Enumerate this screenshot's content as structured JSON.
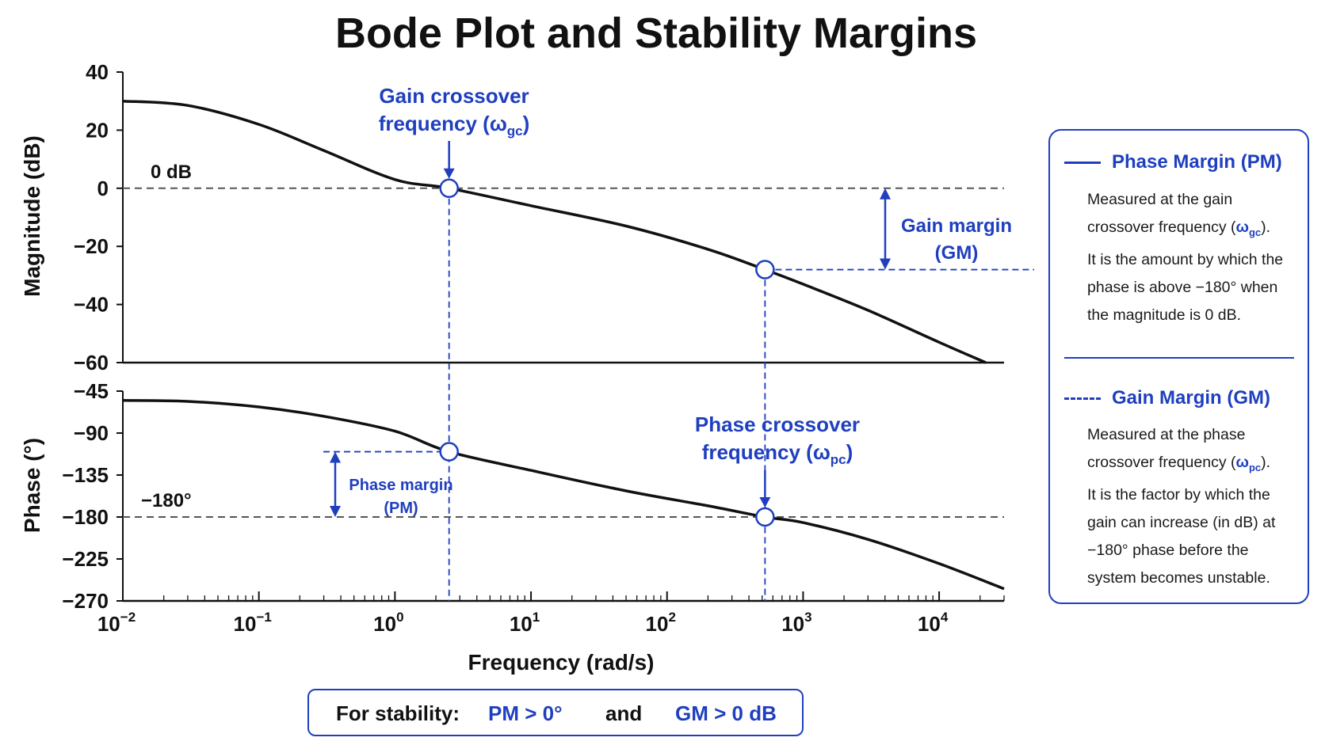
{
  "chart_data": [
    {
      "type": "line",
      "panel": "magnitude",
      "title": "Bode Plot and Stability Margins",
      "ylabel": "Magnitude (dB)",
      "xscale": "log",
      "xlim": [
        0.01,
        30000
      ],
      "ylim": [
        -60,
        40
      ],
      "yticks": [
        40,
        20,
        0,
        -20,
        -40,
        -60
      ],
      "ytick_labels": [
        "40",
        "20",
        "0",
        "−20",
        "−40",
        "−60"
      ],
      "series": [
        {
          "x": [
            0.01,
            0.03,
            0.1,
            0.3,
            1,
            2.5,
            10,
            50,
            200,
            525,
            1000,
            3000,
            10000,
            22000
          ],
          "values": [
            30,
            28.5,
            22,
            13,
            3,
            0,
            -6,
            -13,
            -21,
            -28,
            -33,
            -42,
            -53,
            -60
          ]
        }
      ],
      "reference_line": {
        "y": 0,
        "label": "0 dB"
      },
      "markers": [
        {
          "x": 2.5,
          "y": 0
        },
        {
          "x": 525,
          "y": -28
        }
      ],
      "annotations": {
        "gain_crossover_line1": "Gain crossover",
        "gain_crossover_line2": "frequency (ω",
        "gain_crossover_sub": "gc",
        "gain_crossover_close": ")",
        "gain_margin_line1": "Gain margin",
        "gain_margin_line2": "(GM)"
      }
    },
    {
      "type": "line",
      "panel": "phase",
      "ylabel": "Phase (°)",
      "xlabel": "Frequency (rad/s)",
      "xscale": "log",
      "xlim": [
        0.01,
        30000
      ],
      "ylim": [
        -270,
        -45
      ],
      "yticks": [
        -45,
        -90,
        -135,
        -180,
        -225,
        -270
      ],
      "ytick_labels": [
        "−45",
        "−90",
        "−135",
        "−180",
        "−225",
        "−270"
      ],
      "xticks": [
        0.01,
        0.1,
        1,
        10,
        100,
        1000,
        10000
      ],
      "xtick_base": [
        "10",
        "10",
        "10",
        "10",
        "10",
        "10",
        "10"
      ],
      "xtick_exp": [
        "−2",
        "−1",
        "0",
        "1",
        "2",
        "3",
        "4"
      ],
      "series": [
        {
          "x": [
            0.01,
            0.03,
            0.1,
            0.3,
            1,
            2.5,
            10,
            50,
            200,
            525,
            1000,
            3000,
            10000,
            30000
          ],
          "values": [
            -55,
            -56,
            -62,
            -72,
            -88,
            -110,
            -130,
            -152,
            -168,
            -180,
            -186,
            -204,
            -230,
            -257
          ]
        }
      ],
      "reference_line": {
        "y": -180,
        "label": "−180°"
      },
      "markers": [
        {
          "x": 2.5,
          "y": -110
        },
        {
          "x": 525,
          "y": -180
        }
      ],
      "annotations": {
        "phase_crossover_line1": "Phase crossover",
        "phase_crossover_line2": "frequency (ω",
        "phase_crossover_sub": "pc",
        "phase_crossover_close": ")",
        "phase_margin_line1": "Phase margin",
        "phase_margin_line2": "(PM)"
      }
    }
  ],
  "legend": {
    "pm_title": "Phase Margin (PM)",
    "pm_lines": [
      "Measured at the gain",
      "crossover frequency (",
      "It is the amount by which the",
      "phase is above −180° when",
      "the magnitude is 0 dB."
    ],
    "pm_sym": "ω",
    "pm_sub": "gc",
    "pm_close": ").",
    "gm_title": "Gain Margin (GM)",
    "gm_lines": [
      "Measured at the phase",
      "crossover frequency (",
      "It is the factor by which the",
      "gain can increase (in dB) at",
      "−180° phase before the",
      "system becomes unstable."
    ],
    "gm_sym": "ω",
    "gm_sub": "pc",
    "gm_close": ")."
  },
  "stability": {
    "prefix": "For stability:",
    "pm_cond": "PM > 0°",
    "conj": "and",
    "gm_cond": "GM > 0 dB"
  },
  "colors": {
    "curve": "#111111",
    "accent": "#1f3fbf",
    "reference": "#555555"
  }
}
